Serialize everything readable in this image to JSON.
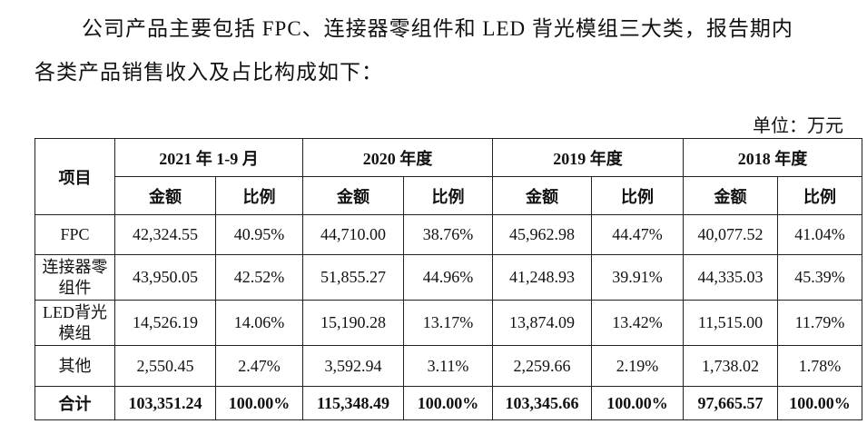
{
  "paragraph": [
    "公司产品主要包括 FPC、连接器零组件和 LED 背光模组三大类，报告期内",
    "各类产品销售收入及占比构成如下："
  ],
  "unit": "单位：万元",
  "table": {
    "header": {
      "item": "项目",
      "periods": [
        "2021 年 1-9 月",
        "2020 年度",
        "2019 年度",
        "2018 年度"
      ],
      "subheaders": [
        "金额",
        "比例",
        "金额",
        "比例",
        "金额",
        "比例",
        "金额",
        "比例"
      ]
    },
    "rows": [
      [
        "FPC",
        "42,324.55",
        "40.95%",
        "44,710.00",
        "38.76%",
        "45,962.98",
        "44.47%",
        "40,077.52",
        "41.04%"
      ],
      [
        "连接器零组件",
        "43,950.05",
        "42.52%",
        "51,855.27",
        "44.96%",
        "41,248.93",
        "39.91%",
        "44,335.03",
        "45.39%"
      ],
      [
        "LED背光模组",
        "14,526.19",
        "14.06%",
        "15,190.28",
        "13.17%",
        "13,874.09",
        "13.42%",
        "11,515.00",
        "11.79%"
      ],
      [
        "其他",
        "2,550.45",
        "2.47%",
        "3,592.94",
        "3.11%",
        "2,259.66",
        "2.19%",
        "1,738.02",
        "1.78%"
      ]
    ],
    "total": [
      "合计",
      "103,351.24",
      "100.00%",
      "115,348.49",
      "100.00%",
      "103,345.66",
      "100.00%",
      "97,665.57",
      "100.00%"
    ]
  }
}
